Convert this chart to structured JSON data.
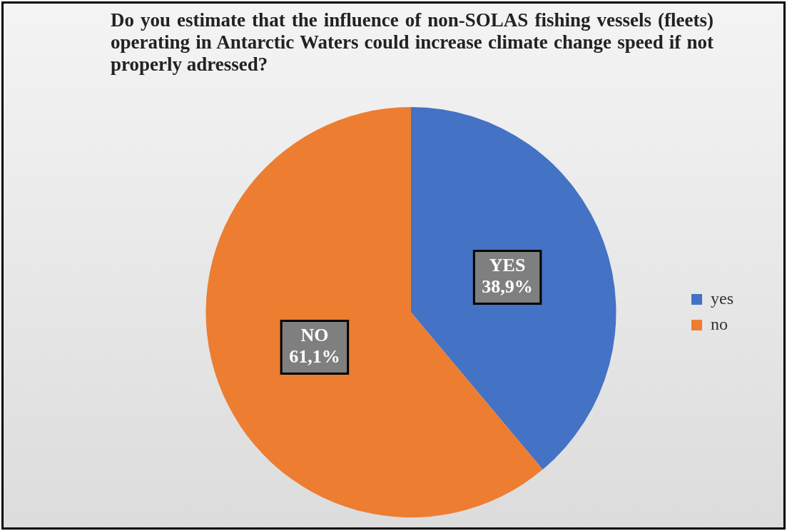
{
  "chart_data": {
    "type": "pie",
    "title": "Do you estimate that the influence of non-SOLAS fishing vessels (fleets) operating in Antarctic Waters could increase climate change speed if not properly adressed?",
    "categories": [
      "yes",
      "no"
    ],
    "values": [
      38.9,
      61.1
    ],
    "colors": [
      "#4472c4",
      "#ed7d31"
    ],
    "value_labels": [
      "YES\n38,9%",
      "NO\n61,1%"
    ],
    "legend": "right"
  }
}
